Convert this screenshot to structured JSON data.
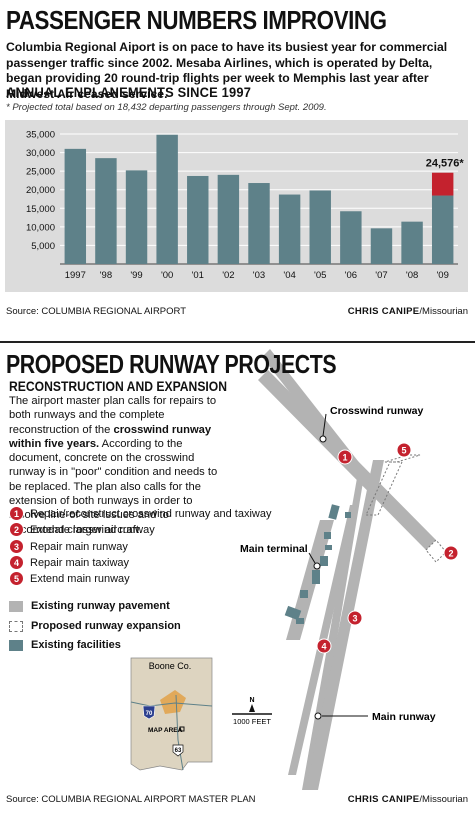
{
  "header": {
    "title": "PASSENGER NUMBERS IMPROVING",
    "intro": "Columbia Regional Aiport is on pace to have its busiest year for commercial passenger traffic since 2002. Mesaba Airlines, which is operated by Delta, began providing 20 round-trip flights per week to Memphis last year after Midwest Air ceased service."
  },
  "chart_section": {
    "heading": "ANNUAL ENPLANEMENTS SINCE 1997",
    "footnote": "* Projected total based on 18,432 departing passengers through Sept. 2009.",
    "source": "Source: COLUMBIA REGIONAL AIRPORT",
    "credit_name": "CHRIS CANIPE",
    "credit_org": "/Missourian"
  },
  "chart_data": {
    "type": "bar",
    "categories": [
      "1997",
      "'98",
      "'99",
      "'00",
      "'01",
      "'02",
      "'03",
      "'04",
      "'05",
      "'06",
      "'07",
      "'08",
      "'09"
    ],
    "values": [
      31000,
      28500,
      25200,
      34800,
      23700,
      24000,
      21800,
      18700,
      19800,
      14200,
      9600,
      11400,
      24576
    ],
    "stacked_2009": {
      "actual": 18432,
      "projected_total": 24576
    },
    "annotation": "24,576*",
    "ylim": [
      0,
      35000
    ],
    "yticks": [
      5000,
      10000,
      15000,
      20000,
      25000,
      30000,
      35000
    ],
    "ytick_labels": [
      "5,000",
      "10,000",
      "15,000",
      "20,000",
      "25,000",
      "30,000",
      "35,000"
    ],
    "grid": true,
    "colors": {
      "bar": "#5e8189",
      "projection": "#c4222e",
      "background": "#dcdcdc"
    }
  },
  "runway": {
    "title": "PROPOSED RUNWAY PROJECTS",
    "subhead": "RECONSTRUCTION AND EXPANSION",
    "desc_pre": "The airport master plan calls for repairs to both runways and the complete reconstruction of the ",
    "desc_bold": "crosswind runway within five years.",
    "desc_post": " According to the document, concrete on the crosswind runway is in \"poor\" condition and needs to be replaced. The plan also calls for the extension of both runways in order to resolve line-of-site issues and to accomodate larger aircraft.",
    "projects": [
      {
        "n": "1",
        "label": "Repair/reconstruct crosswind runway and taxiway"
      },
      {
        "n": "2",
        "label": "Extend crosswind runway"
      },
      {
        "n": "3",
        "label": "Repair main runway"
      },
      {
        "n": "4",
        "label": "Repair main taxiway"
      },
      {
        "n": "5",
        "label": "Extend main runway"
      }
    ],
    "key": {
      "existing": "Existing runway pavement",
      "proposed": "Proposed runway expansion",
      "facilities": "Existing facilities"
    },
    "map_labels": {
      "crosswind": "Crosswind runway",
      "terminal": "Main terminal",
      "main": "Main runway",
      "north": "N",
      "scale": "1000 FEET",
      "county": "Boone Co.",
      "map_area": "MAP AREA",
      "interstate": "70",
      "highway": "63"
    },
    "source": "Source: COLUMBIA REGIONAL AIRPORT MASTER PLAN",
    "credit_name": "CHRIS CANIPE",
    "credit_org": "/Missourian",
    "colors": {
      "pavement": "#b3b3b3",
      "facility": "#5e8189",
      "marker": "#c4222e"
    }
  }
}
